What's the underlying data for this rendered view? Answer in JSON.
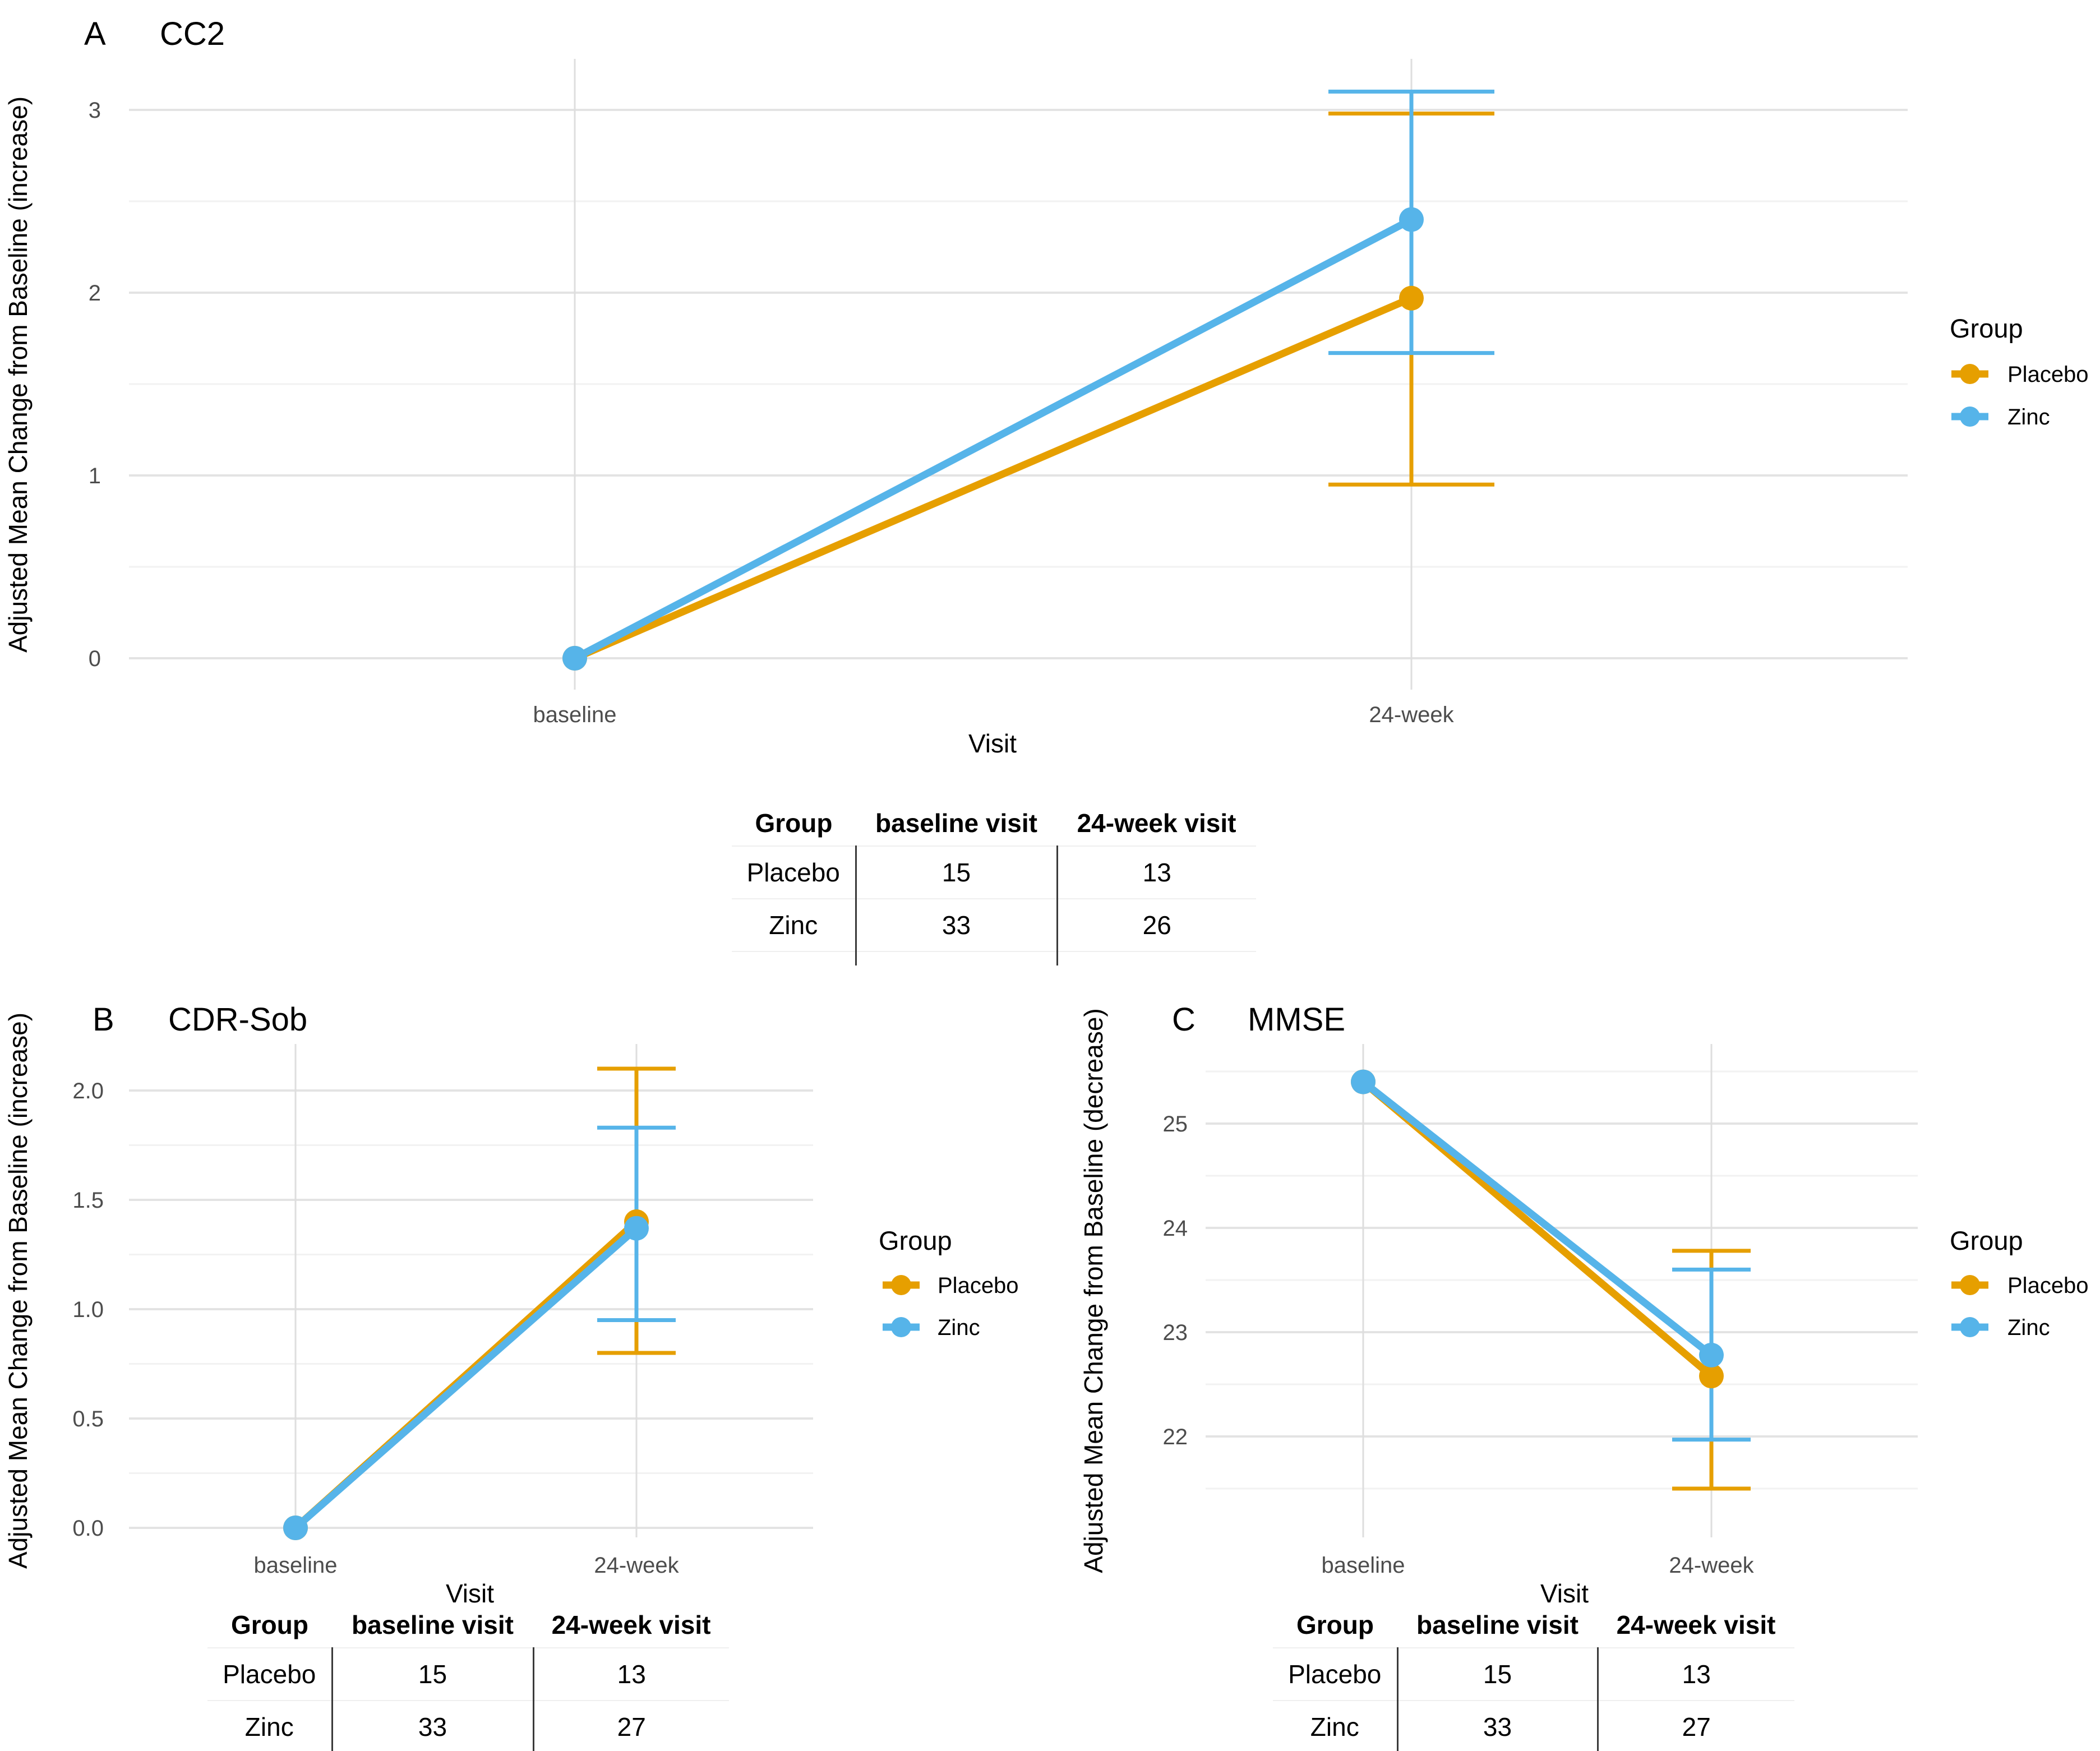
{
  "colors": {
    "placebo": "#E69F00",
    "zinc": "#56B4E9",
    "grid_major": "#E3E3E3",
    "grid_minor": "#F2F2F2",
    "grid_vertical": "#DEDEDE",
    "tick_label": "#4D4D4D",
    "text": "#000000",
    "table_rule": "#EFEFEF",
    "table_divider": "#3A3A3A",
    "background": "#FFFFFF"
  },
  "legend": {
    "title": "Group",
    "items": [
      {
        "label": "Placebo",
        "color_key": "placebo"
      },
      {
        "label": "Zinc",
        "color_key": "zinc"
      }
    ]
  },
  "chart_data": [
    {
      "id": "A",
      "type": "line",
      "tag": "A",
      "title": "CC2",
      "xlabel": "Visit",
      "ylabel": "Adjusted Mean Change from Baseline (increase)",
      "categories": [
        "baseline",
        "24-week"
      ],
      "ylim": [
        -0.17,
        3.28
      ],
      "yticks": [
        0,
        1,
        2,
        3
      ],
      "ytick_labels": [
        "0",
        "1",
        "2",
        "3"
      ],
      "minor_ticks": [
        0.5,
        1.5,
        2.5
      ],
      "grid": true,
      "legend_position": "right",
      "series": [
        {
          "name": "Placebo",
          "color_key": "placebo",
          "values": [
            0,
            1.97
          ],
          "error_bar_24_week": {
            "low": 0.95,
            "high": 2.98
          }
        },
        {
          "name": "Zinc",
          "color_key": "zinc",
          "values": [
            0,
            2.4
          ],
          "error_bar_24_week": {
            "low": 1.67,
            "high": 3.1
          }
        }
      ],
      "table": {
        "headers": [
          "Group",
          "baseline visit",
          "24-week visit"
        ],
        "rows": [
          [
            "Placebo",
            "15",
            "13"
          ],
          [
            "Zinc",
            "33",
            "26"
          ]
        ]
      }
    },
    {
      "id": "B",
      "type": "line",
      "tag": "B",
      "title": "CDR-Sob",
      "xlabel": "Visit",
      "ylabel": "Adjusted Mean Change from Baseline (increase)",
      "categories": [
        "baseline",
        "24-week"
      ],
      "ylim": [
        -0.04,
        2.21
      ],
      "yticks": [
        0,
        0.5,
        1,
        1.5,
        2
      ],
      "ytick_labels": [
        "0.0",
        "0.5",
        "1.0",
        "1.5",
        "2.0"
      ],
      "minor_ticks": [
        0.25,
        0.75,
        1.25,
        1.75
      ],
      "grid": true,
      "legend_position": "right",
      "series": [
        {
          "name": "Placebo",
          "color_key": "placebo",
          "values": [
            0,
            1.4
          ],
          "error_bar_24_week": {
            "low": 0.8,
            "high": 2.1
          }
        },
        {
          "name": "Zinc",
          "color_key": "zinc",
          "values": [
            0,
            1.37
          ],
          "error_bar_24_week": {
            "low": 0.95,
            "high": 1.83
          }
        }
      ],
      "table": {
        "headers": [
          "Group",
          "baseline visit",
          "24-week visit"
        ],
        "rows": [
          [
            "Placebo",
            "15",
            "13"
          ],
          [
            "Zinc",
            "33",
            "27"
          ]
        ]
      }
    },
    {
      "id": "C",
      "type": "line",
      "tag": "C",
      "title": "MMSE",
      "xlabel": "Visit",
      "ylabel": "Adjusted Mean Change from Baseline (decrease)",
      "categories": [
        "baseline",
        "24-week"
      ],
      "ylim": [
        21.03,
        25.76
      ],
      "yticks": [
        22,
        23,
        24,
        25
      ],
      "ytick_labels": [
        "22",
        "23",
        "24",
        "25"
      ],
      "minor_ticks": [
        21.5,
        22.5,
        23.5,
        24.5,
        25.5
      ],
      "grid": true,
      "legend_position": "right",
      "series": [
        {
          "name": "Placebo",
          "color_key": "placebo",
          "values": [
            25.4,
            22.58
          ],
          "error_bar_24_week": {
            "low": 21.5,
            "high": 23.78
          }
        },
        {
          "name": "Zinc",
          "color_key": "zinc",
          "values": [
            25.4,
            22.78
          ],
          "error_bar_24_week": {
            "low": 21.97,
            "high": 23.6
          }
        }
      ],
      "table": {
        "headers": [
          "Group",
          "baseline visit",
          "24-week visit"
        ],
        "rows": [
          [
            "Placebo",
            "15",
            "13"
          ],
          [
            "Zinc",
            "33",
            "27"
          ]
        ]
      }
    }
  ]
}
